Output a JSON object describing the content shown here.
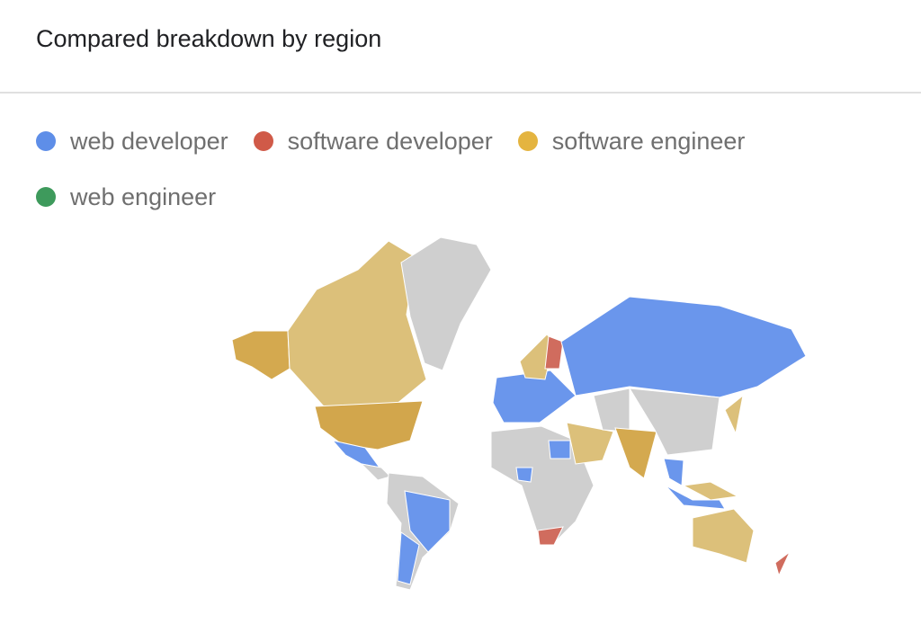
{
  "header": {
    "title": "Compared breakdown by region"
  },
  "legend": [
    {
      "name": "web developer",
      "color": "#5e8ee8"
    },
    {
      "name": "software developer",
      "color": "#d05a48"
    },
    {
      "name": "software engineer",
      "color": "#e4b440"
    },
    {
      "name": "web engineer",
      "color": "#3e9a5c"
    }
  ]
}
